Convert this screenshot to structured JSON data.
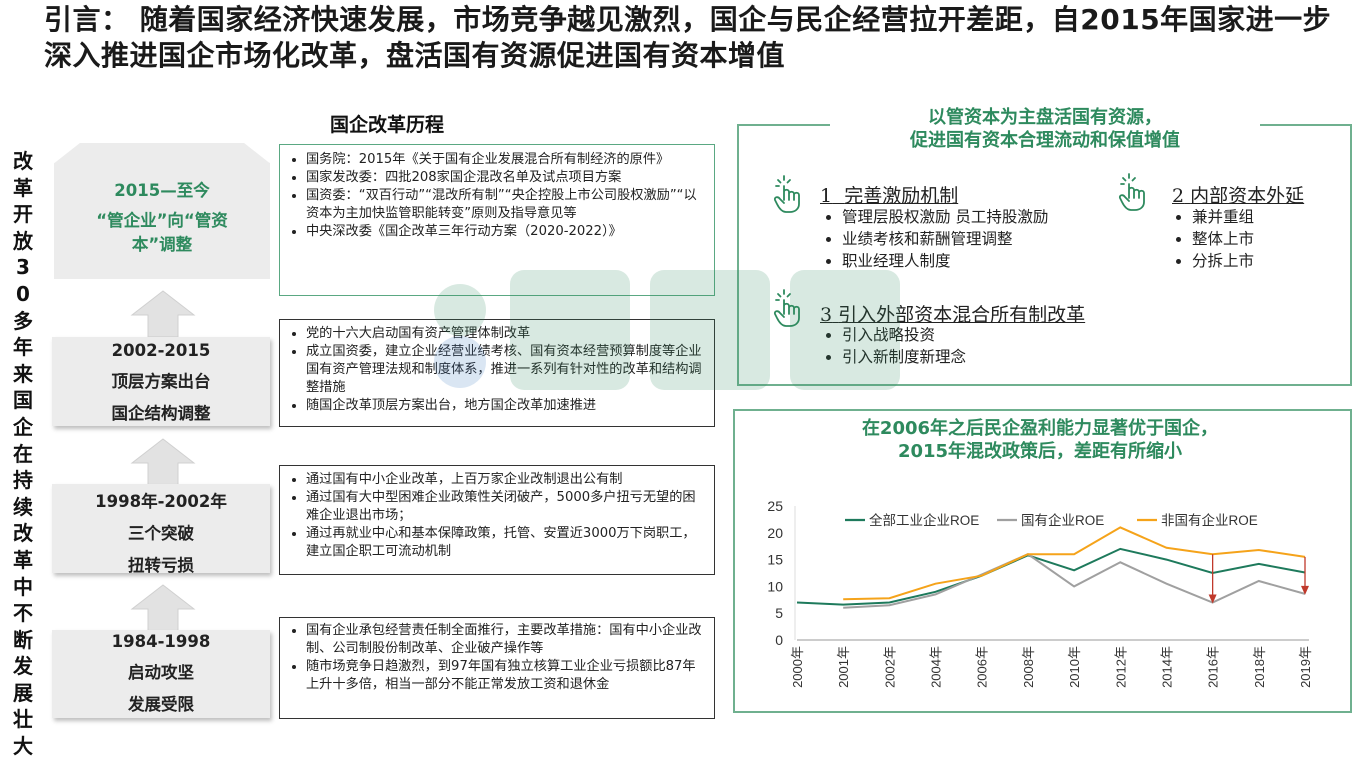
{
  "title": "引言： 随着国家经济快速发展，市场竞争越见激烈，国企与民企经营拉开差距，自2015年国家进一步深入推进国企市场化改革，盘活国有资源促进国有资本增值",
  "vertical_title": "改革开放30多年来国企在持续改革中不断发展壮大",
  "history_heading": "国企改革历程",
  "stages": [
    {
      "lines": [
        "2015—至今",
        "“管企业”向“管资",
        "本”调整"
      ]
    },
    {
      "lines": [
        "2002-2015",
        "顶层方案出台",
        "国企结构调整"
      ]
    },
    {
      "lines": [
        "1998年-2002年",
        "三个突破",
        "扭转亏损"
      ]
    },
    {
      "lines": [
        "1984-1998",
        "启动攻坚",
        "发展受限"
      ]
    }
  ],
  "stage_notes": [
    [
      "国务院：2015年《关于国有企业发展混合所有制经济的原件》",
      "国家发改委：四批208家国企混改名单及试点项目方案",
      "国资委：“双百行动”“混改所有制”“央企控股上市公司股权激励”“以资本为主加快监管职能转变”原则及指导意见等",
      "中央深改委《国企改革三年行动方案（2020-2022）》"
    ],
    [
      "党的十六大启动国有资产管理体制改革",
      "成立国资委，建立企业经营业绩考核、国有资本经营预算制度等企业国有资产管理法规和制度体系，推进一系列有针对性的改革和结构调整措施",
      "随国企改革顶层方案出台，地方国企改革加速推进"
    ],
    [
      "通过国有中小企业改革，上百万家企业改制退出公有制",
      "通过国有大中型困难企业政策性关闭破产，5000多户扭亏无望的困难企业退出市场；",
      "通过再就业中心和基本保障政策，托管、安置近3000万下岗职工，建立国企职工可流动机制"
    ],
    [
      "国有企业承包经营责任制全面推行，主要改革措施：国有中小企业改制、公司制股份制改革、企业破产操作等",
      "随市场竞争日趋激烈，到97年国有独立核算工业企业亏损额比87年上升十多倍，相当一部分不能正常发放工资和退休金"
    ]
  ],
  "right_top": {
    "heading_line1": "以管资本为主盘活国有资源，",
    "heading_line2": "促进国有资本合理流动和保值增值",
    "items": [
      {
        "num": "1",
        "title": "完善激励机制",
        "points": [
          "管理层股权激励 员工持股激励",
          "业绩考核和薪酬管理调整",
          "职业经理人制度"
        ]
      },
      {
        "num": "2",
        "title": "内部资本外延",
        "points": [
          "兼并重组",
          "整体上市",
          "分拆上市"
        ]
      },
      {
        "num": "3",
        "title": "引入外部资本混合所有制改革",
        "points": [
          "引入战略投资",
          "引入新制度新理念"
        ]
      }
    ]
  },
  "right_bottom": {
    "heading_line1": "在2006年之后民企盈利能力显著优于国企，",
    "heading_line2": "2015年混改政策后，差距有所缩小"
  },
  "chart_data": {
    "type": "line",
    "x": [
      "2000年",
      "2001年",
      "2002年",
      "2004年",
      "2006年",
      "2008年",
      "2010年",
      "2012年",
      "2014年",
      "2016年",
      "2018年",
      "2019年"
    ],
    "ylim": [
      0,
      25
    ],
    "yticks": [
      0,
      5,
      10,
      15,
      20,
      25
    ],
    "legend_position": "top",
    "series": [
      {
        "name": "全部工业企业ROE",
        "color": "#1e7a5c",
        "values": [
          7.0,
          6.6,
          7.0,
          9.0,
          12.0,
          15.8,
          13.0,
          17.0,
          15.0,
          12.5,
          14.2,
          12.6
        ]
      },
      {
        "name": "国有企业ROE",
        "color": "#a0a0a0",
        "values": [
          null,
          6.0,
          6.5,
          8.5,
          12.2,
          16.0,
          10.0,
          14.5,
          10.5,
          7.0,
          11.0,
          8.6
        ]
      },
      {
        "name": "非国有企业ROE",
        "color": "#f5a31a",
        "values": [
          null,
          7.6,
          7.8,
          10.5,
          12.0,
          16.0,
          16.0,
          21.0,
          17.2,
          16.0,
          16.8,
          15.5
        ]
      }
    ],
    "gap_arrows_at": [
      "2016年",
      "2019年"
    ]
  },
  "colors": {
    "accent_green": "#2e8a5e",
    "arrow_red": "#c0392b"
  }
}
